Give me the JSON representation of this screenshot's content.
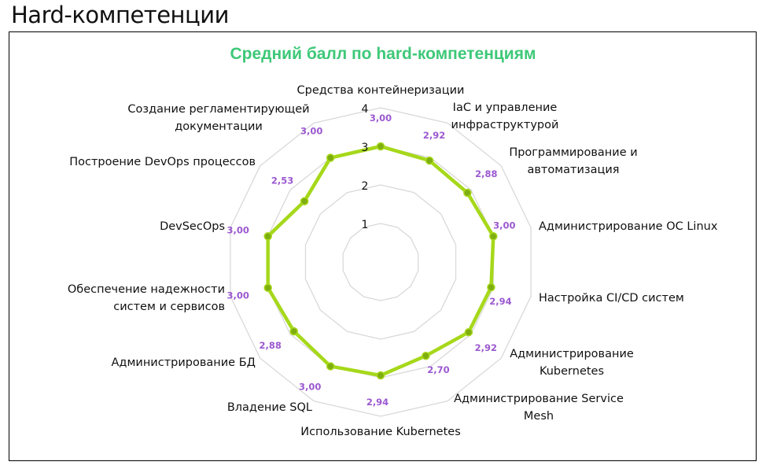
{
  "page": {
    "title": "Hard-компетенции"
  },
  "chart_data": {
    "type": "radar",
    "title": "Средний балл по hard-компетенциям",
    "categories": [
      "Средства контейнеризации",
      "IaC и управление инфраструктурой",
      "Программирование и автоматизация",
      "Администрирование ОС Linux",
      "Настройка CI/CD систем",
      "Администрирование Kubernetes",
      "Администрирование Service Mesh",
      "Использование Kubernetes",
      "Владение SQL",
      "Администрирование БД",
      "Обеспечение надежности систем и сервисов",
      "DevSecOps",
      "Построение DevOps процессов",
      "Создание регламентирующей документации"
    ],
    "values": [
      3.0,
      2.92,
      2.88,
      3.0,
      2.94,
      2.92,
      2.7,
      2.94,
      3.0,
      2.88,
      3.0,
      3.0,
      2.53,
      3.0
    ],
    "value_labels": [
      "3,00",
      "2,92",
      "2,88",
      "3,00",
      "2,94",
      "2,92",
      "2,70",
      "2,94",
      "3,00",
      "2,88",
      "3,00",
      "3,00",
      "2,53",
      "3,00"
    ],
    "ticks": [
      "1",
      "2",
      "3",
      "4"
    ],
    "rlim": [
      0,
      4
    ],
    "grid": true,
    "colors": {
      "series": "#a6d81a",
      "marker": "#7fae10",
      "data_label": "#9b59d0",
      "title": "#3ec878",
      "grid": "#d9d9d9"
    }
  }
}
